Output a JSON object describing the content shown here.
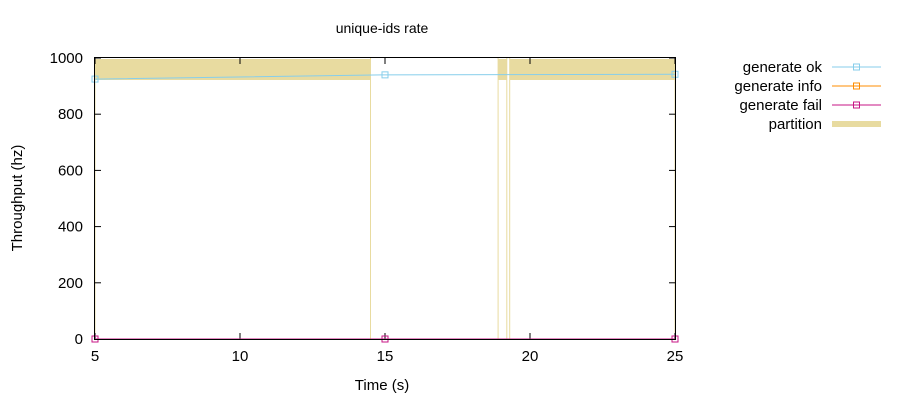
{
  "chart_data": {
    "type": "line",
    "title": "unique-ids rate",
    "xlabel": "Time (s)",
    "ylabel": "Throughput (hz)",
    "xlim": [
      5,
      25
    ],
    "ylim": [
      0,
      1000
    ],
    "xticks": [
      5,
      10,
      15,
      20,
      25
    ],
    "yticks": [
      0,
      200,
      400,
      600,
      800,
      1000
    ],
    "legend_position": "outside-right",
    "grid": false,
    "series": [
      {
        "name": "generate ok",
        "color": "#87ceeb",
        "marker": "square",
        "x": [
          5,
          15,
          25
        ],
        "y": [
          925,
          940,
          942
        ]
      },
      {
        "name": "generate info",
        "color": "#ff8c00",
        "marker": "square",
        "x": [
          5,
          15,
          25
        ],
        "y": [
          0,
          0,
          0
        ]
      },
      {
        "name": "generate fail",
        "color": "#c71585",
        "marker": "square",
        "x": [
          5,
          15,
          25
        ],
        "y": [
          0,
          0,
          0
        ]
      }
    ],
    "partition": {
      "name": "partition",
      "color": "#e8dba0",
      "intervals": [
        [
          5,
          14.5
        ],
        [
          18.9,
          19.2
        ],
        [
          19.3,
          25
        ]
      ]
    }
  }
}
